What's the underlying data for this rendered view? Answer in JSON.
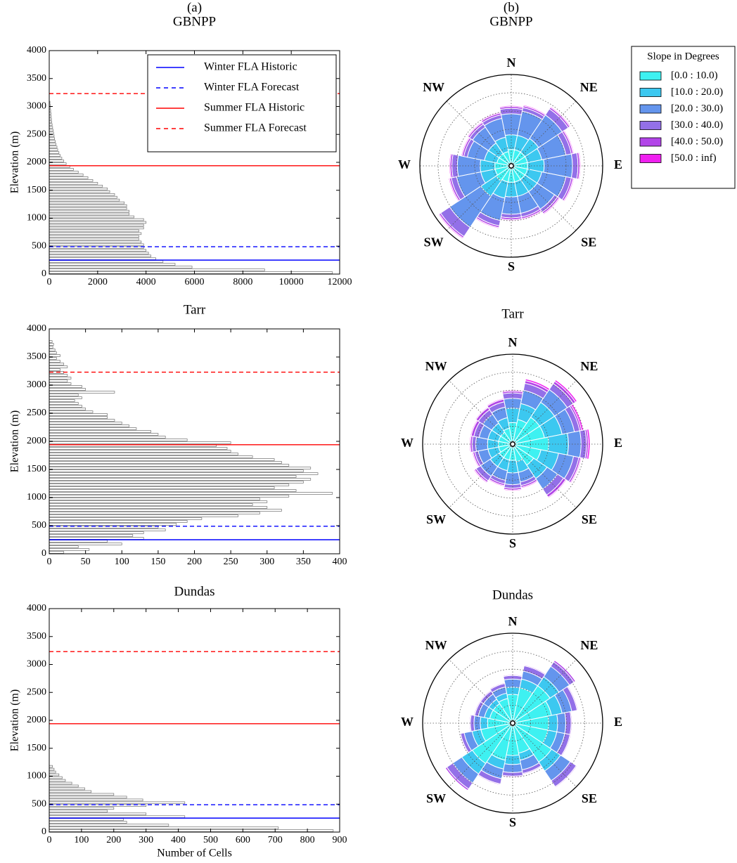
{
  "chart_data": [
    {
      "type": "histogram",
      "orientation": "horizontal",
      "panel_label": "(a)",
      "title": "GBNPP",
      "ylabel": "Elevation (m)",
      "color": "#808080",
      "bins": [
        0,
        50,
        100,
        150,
        200,
        250,
        300,
        350,
        400,
        450,
        500,
        550,
        600,
        650,
        700,
        750,
        800,
        850,
        900,
        950,
        1000,
        1050,
        1100,
        1150,
        1200,
        1250,
        1300,
        1350,
        1400,
        1450,
        1500,
        1550,
        1600,
        1650,
        1700,
        1750,
        1800,
        1850,
        1900,
        1950,
        2000,
        2050,
        2100,
        2150,
        2200,
        2250,
        2300,
        2350,
        2400,
        2450,
        2500,
        2550,
        2600,
        2650,
        2700,
        2750,
        2800,
        2850,
        2900,
        2950,
        3000,
        3050,
        3100
      ],
      "counts": [
        11700,
        8900,
        5900,
        5200,
        4700,
        4400,
        4200,
        4100,
        4000,
        3900,
        3900,
        3800,
        3700,
        3700,
        3800,
        3700,
        3900,
        3900,
        4000,
        3900,
        3500,
        3300,
        3300,
        3200,
        3200,
        3100,
        2900,
        2800,
        2700,
        2500,
        2400,
        2200,
        2000,
        1800,
        1600,
        1400,
        1200,
        1000,
        850,
        700,
        600,
        520,
        450,
        400,
        350,
        320,
        280,
        250,
        220,
        200,
        180,
        160,
        140,
        120,
        100,
        90,
        80,
        70,
        60,
        50,
        40,
        30
      ],
      "xlim": [
        0,
        12000
      ],
      "xticks": [
        0,
        2000,
        4000,
        6000,
        8000,
        10000,
        12000
      ],
      "ylim": [
        0,
        4000
      ],
      "yticks": [
        0,
        500,
        1000,
        1500,
        2000,
        2500,
        3000,
        3500,
        4000
      ],
      "reference_lines": [
        {
          "name": "Winter FLA Historic",
          "color": "#0000ff",
          "style": "solid",
          "value": 250
        },
        {
          "name": "Winter FLA Forecast",
          "color": "#0000ff",
          "style": "dashed",
          "value": 490
        },
        {
          "name": "Summer FLA Historic",
          "color": "#ff0000",
          "style": "solid",
          "value": 1940
        },
        {
          "name": "Summer FLA Forecast",
          "color": "#ff0000",
          "style": "dashed",
          "value": 3230
        }
      ],
      "legend": "upper right"
    },
    {
      "type": "histogram",
      "orientation": "horizontal",
      "title": "Tarr",
      "ylabel": "Elevation (m)",
      "color": "#808080",
      "bins": [
        0,
        50,
        100,
        150,
        200,
        250,
        300,
        350,
        400,
        450,
        500,
        550,
        600,
        650,
        700,
        750,
        800,
        850,
        900,
        950,
        1000,
        1050,
        1100,
        1150,
        1200,
        1250,
        1300,
        1350,
        1400,
        1450,
        1500,
        1550,
        1600,
        1650,
        1700,
        1750,
        1800,
        1850,
        1900,
        1950,
        2000,
        2050,
        2100,
        2150,
        2200,
        2250,
        2300,
        2350,
        2400,
        2450,
        2500,
        2550,
        2600,
        2650,
        2700,
        2750,
        2800,
        2850,
        2900,
        2950,
        3000,
        3050,
        3100,
        3150,
        3200,
        3250,
        3300,
        3350,
        3400,
        3450,
        3500,
        3550,
        3600,
        3650,
        3700,
        3750,
        3800
      ],
      "counts": [
        20,
        55,
        40,
        100,
        80,
        130,
        115,
        130,
        160,
        150,
        175,
        190,
        210,
        260,
        290,
        320,
        300,
        280,
        300,
        290,
        330,
        390,
        340,
        310,
        330,
        350,
        360,
        340,
        370,
        350,
        360,
        330,
        320,
        310,
        280,
        260,
        250,
        245,
        230,
        250,
        190,
        160,
        150,
        140,
        120,
        110,
        100,
        90,
        80,
        80,
        60,
        50,
        45,
        40,
        35,
        45,
        40,
        90,
        50,
        45,
        30,
        25,
        30,
        25,
        20,
        15,
        25,
        20,
        15,
        10,
        15,
        10,
        8,
        5,
        6,
        4
      ],
      "xlim": [
        0,
        400
      ],
      "xticks": [
        0,
        50,
        100,
        150,
        200,
        250,
        300,
        350,
        400
      ],
      "ylim": [
        0,
        4000
      ],
      "yticks": [
        0,
        500,
        1000,
        1500,
        2000,
        2500,
        3000,
        3500,
        4000
      ],
      "reference_lines": [
        {
          "color": "#0000ff",
          "style": "solid",
          "value": 250
        },
        {
          "color": "#0000ff",
          "style": "dashed",
          "value": 490
        },
        {
          "color": "#ff0000",
          "style": "solid",
          "value": 1940
        },
        {
          "color": "#ff0000",
          "style": "dashed",
          "value": 3230
        }
      ]
    },
    {
      "type": "histogram",
      "orientation": "horizontal",
      "title": "Dundas",
      "ylabel": "Elevation (m)",
      "xlabel": "Number of Cells",
      "color": "#808080",
      "bins": [
        0,
        50,
        100,
        150,
        200,
        250,
        300,
        350,
        400,
        450,
        500,
        550,
        600,
        650,
        700,
        750,
        800,
        850,
        900,
        950,
        1000,
        1050,
        1100,
        1150,
        1200
      ],
      "counts": [
        880,
        710,
        370,
        240,
        230,
        420,
        300,
        180,
        200,
        300,
        420,
        290,
        240,
        200,
        130,
        110,
        90,
        70,
        50,
        40,
        30,
        20,
        15,
        10
      ],
      "xlim": [
        0,
        900
      ],
      "xticks": [
        0,
        100,
        200,
        300,
        400,
        500,
        600,
        700,
        800,
        900
      ],
      "ylim": [
        0,
        4000
      ],
      "yticks": [
        0,
        500,
        1000,
        1500,
        2000,
        2500,
        3000,
        3500,
        4000
      ],
      "reference_lines": [
        {
          "color": "#0000ff",
          "style": "solid",
          "value": 250
        },
        {
          "color": "#0000ff",
          "style": "dashed",
          "value": 490
        },
        {
          "color": "#ff0000",
          "style": "solid",
          "value": 1940
        },
        {
          "color": "#ff0000",
          "style": "dashed",
          "value": 3230
        }
      ]
    },
    {
      "type": "windrose",
      "panel_label": "(b)",
      "title": "GBNPP",
      "categories": [
        "N",
        null,
        "NE",
        null,
        "E",
        null,
        "SE",
        null,
        "S",
        null,
        "SW",
        null,
        "W",
        null,
        "NW",
        null
      ],
      "rlim": [
        0,
        5
      ],
      "rgrid": [
        1,
        2,
        3,
        4
      ],
      "legend_title": "Slope in Degrees",
      "legend": "outside right",
      "series": [
        {
          "name": "[0.0 : 10.0)",
          "color": "#3ef1f1",
          "values": [
            0.9,
            0.9,
            0.9,
            0.9,
            0.9,
            0.9,
            0.9,
            0.9,
            0.9,
            0.9,
            1.0,
            0.9,
            0.9,
            0.8,
            0.8,
            0.8
          ]
        },
        {
          "name": "[10.0 : 20.0)",
          "color": "#3cc8f0",
          "values": [
            0.8,
            0.8,
            0.9,
            0.8,
            0.9,
            0.8,
            0.8,
            0.8,
            0.8,
            0.9,
            1.0,
            0.8,
            0.8,
            0.7,
            0.7,
            0.8
          ]
        },
        {
          "name": "[20.0 : 30.0)",
          "color": "#6495ed",
          "values": [
            1.15,
            1.35,
            1.55,
            1.35,
            1.55,
            1.35,
            1.15,
            0.95,
            0.95,
            1.25,
            2.05,
            1.35,
            1.25,
            0.95,
            1.05,
            1.05
          ]
        },
        {
          "name": "[30.0 : 40.0)",
          "color": "#9370e8",
          "values": [
            0.3,
            0.2,
            0.4,
            0.3,
            0.3,
            0.3,
            0.2,
            0.2,
            0.2,
            0.3,
            0.6,
            0.3,
            0.3,
            0.2,
            0.2,
            0.2
          ]
        },
        {
          "name": "[40.0 : 50.0)",
          "color": "#b245e8",
          "values": [
            0.1,
            0.1,
            0.1,
            0.1,
            0.1,
            0.1,
            0.1,
            0.1,
            0.1,
            0.1,
            0.1,
            0.1,
            0.1,
            0.1,
            0.1,
            0.1
          ]
        },
        {
          "name": "[50.0 : inf)",
          "color": "#f020f0",
          "values": [
            0.05,
            0.05,
            0.05,
            0.05,
            0.05,
            0.05,
            0.05,
            0.05,
            0.05,
            0.05,
            0.05,
            0.05,
            0.05,
            0.05,
            0.05,
            0.05
          ]
        }
      ]
    },
    {
      "type": "windrose",
      "title": "Tarr",
      "categories": [
        "N",
        null,
        "NE",
        null,
        "E",
        null,
        "SE",
        null,
        "S",
        null,
        "SW",
        null,
        "W",
        null,
        "NW",
        null
      ],
      "rlim": [
        0,
        5
      ],
      "rgrid": [
        1,
        2,
        3,
        4
      ],
      "series": [
        {
          "color": "#3ef1f1",
          "values": [
            1.2,
            1.4,
            1.8,
            1.8,
            2.0,
            1.6,
            1.4,
            1.0,
            0.9,
            0.9,
            0.9,
            0.8,
            0.8,
            0.8,
            0.8,
            0.9
          ]
        },
        {
          "color": "#3cc8f0",
          "values": [
            0.8,
            0.9,
            1.0,
            1.0,
            1.1,
            1.0,
            0.9,
            0.6,
            0.7,
            0.6,
            0.6,
            0.6,
            0.6,
            0.6,
            0.6,
            0.6
          ]
        },
        {
          "color": "#6495ed",
          "values": [
            0.55,
            0.75,
            0.85,
            0.7,
            0.7,
            0.85,
            0.7,
            0.55,
            0.65,
            0.55,
            0.65,
            0.55,
            0.65,
            0.5,
            0.6,
            0.6
          ]
        },
        {
          "color": "#9370e8",
          "values": [
            0.3,
            0.4,
            0.4,
            0.3,
            0.3,
            0.3,
            0.4,
            0.2,
            0.2,
            0.2,
            0.3,
            0.2,
            0.2,
            0.3,
            0.3,
            0.3
          ]
        },
        {
          "color": "#b245e8",
          "values": [
            0.1,
            0.15,
            0.15,
            0.1,
            0.1,
            0.1,
            0.15,
            0.1,
            0.1,
            0.1,
            0.1,
            0.1,
            0.1,
            0.15,
            0.15,
            0.15
          ]
        },
        {
          "color": "#f020f0",
          "values": [
            0.05,
            0.1,
            0.1,
            0.1,
            0.1,
            0.05,
            0.05,
            0.05,
            0.05,
            0.05,
            0.05,
            0.05,
            0.05,
            0.05,
            0.05,
            0.05
          ]
        }
      ]
    },
    {
      "type": "windrose",
      "title": "Dundas",
      "categories": [
        "N",
        null,
        "NE",
        null,
        "E",
        null,
        "SE",
        null,
        "S",
        null,
        "SW",
        null,
        "W",
        null,
        "NW",
        null
      ],
      "rlim": [
        0,
        5
      ],
      "rgrid": [
        1,
        2,
        3,
        4
      ],
      "series": [
        {
          "color": "#3ef1f1",
          "values": [
            1.6,
            2.0,
            2.5,
            2.2,
            2.0,
            2.0,
            2.6,
            1.7,
            1.8,
            2.1,
            2.7,
            1.8,
            1.4,
            1.3,
            1.3,
            1.4
          ]
        },
        {
          "color": "#3cc8f0",
          "values": [
            0.4,
            0.5,
            0.6,
            0.6,
            0.5,
            0.5,
            0.6,
            0.4,
            0.5,
            0.5,
            0.7,
            0.5,
            0.4,
            0.3,
            0.3,
            0.3
          ]
        },
        {
          "color": "#6495ed",
          "values": [
            0.45,
            0.45,
            0.7,
            0.55,
            0.45,
            0.45,
            0.65,
            0.55,
            0.45,
            0.55,
            0.6,
            0.45,
            0.35,
            0.35,
            0.35,
            0.35
          ]
        },
        {
          "color": "#9370e8",
          "values": [
            0.2,
            0.3,
            0.3,
            0.3,
            0.3,
            0.3,
            0.4,
            0.2,
            0.2,
            0.3,
            0.4,
            0.2,
            0.2,
            0.2,
            0.2,
            0.2
          ]
        },
        {
          "color": "#b245e8",
          "values": [
            0.05,
            0.05,
            0.1,
            0.05,
            0.05,
            0.05,
            0.05,
            0.05,
            0.05,
            0.05,
            0.1,
            0.05,
            0.05,
            0.05,
            0.05,
            0.05
          ]
        },
        {
          "color": "#f020f0",
          "values": [
            0,
            0,
            0,
            0,
            0,
            0,
            0,
            0,
            0,
            0,
            0,
            0,
            0,
            0,
            0,
            0
          ]
        }
      ]
    }
  ]
}
